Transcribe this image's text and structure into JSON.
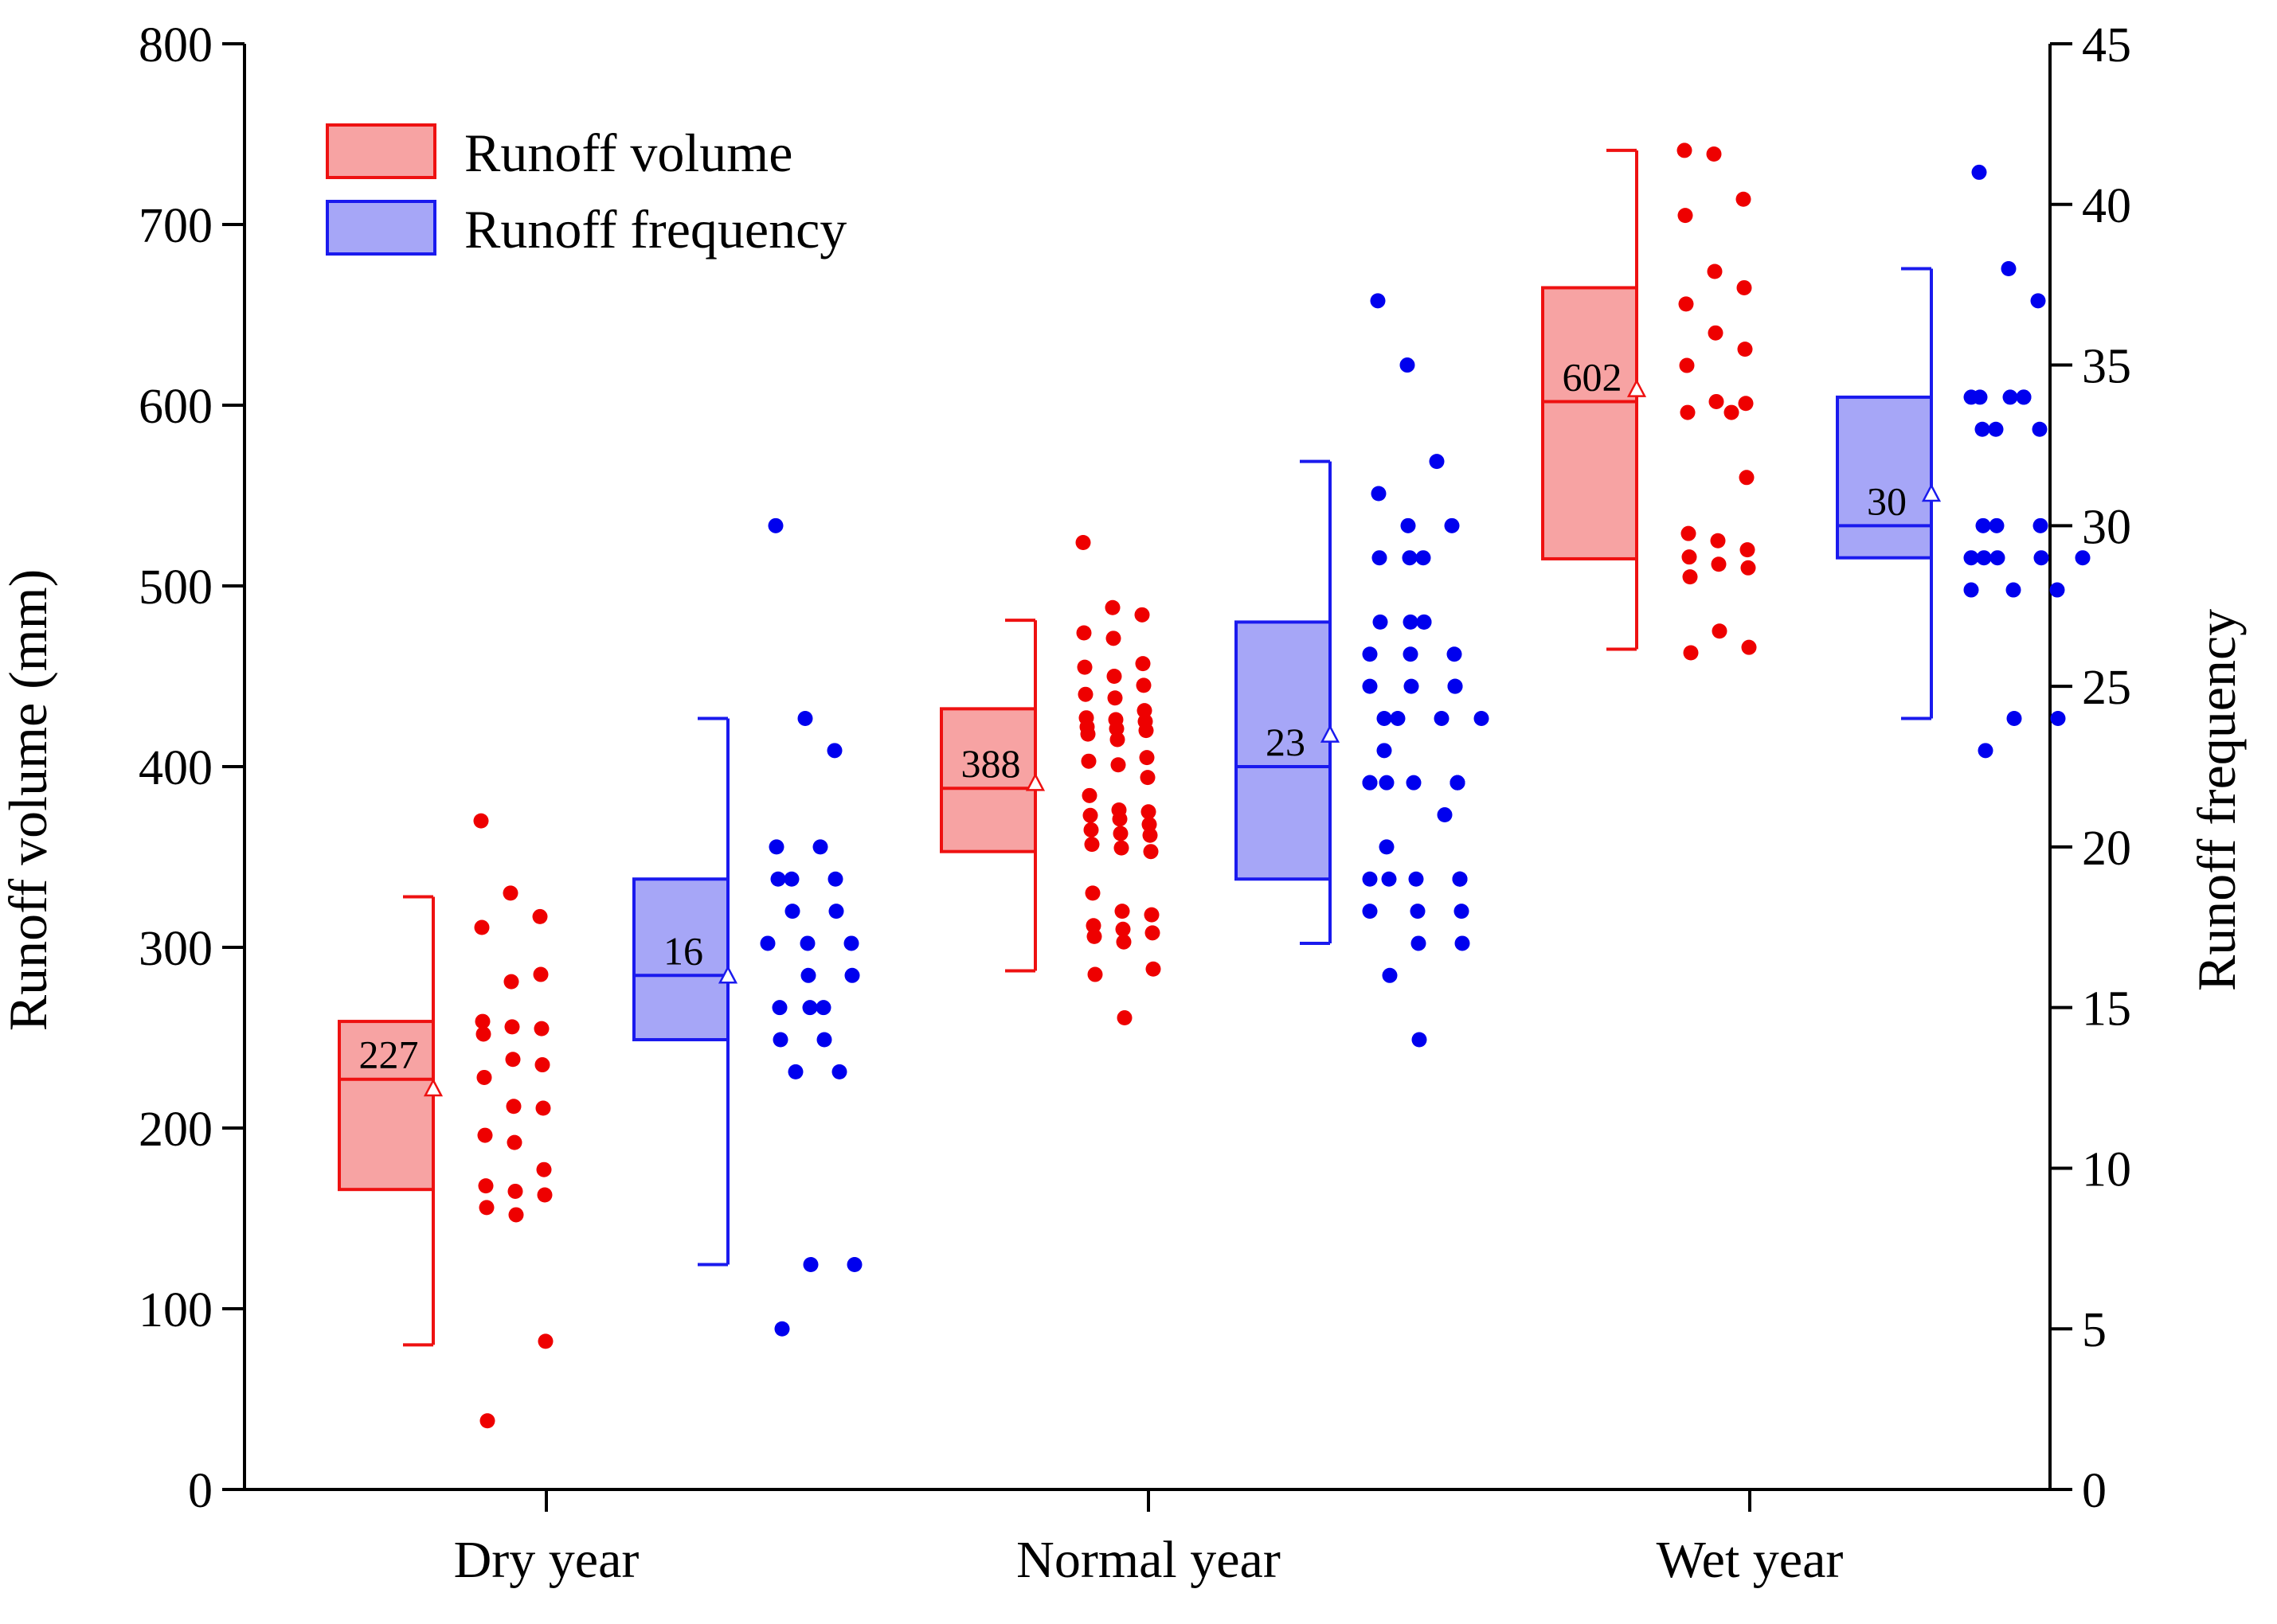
{
  "chart_data": {
    "type": "box-scatter",
    "categories": [
      "Dry year",
      "Normal year",
      "Wet year"
    ],
    "left_axis": {
      "label": "Runoff volume (mm)",
      "range": [
        0,
        800
      ],
      "ticks": [
        0,
        100,
        200,
        300,
        400,
        500,
        600,
        700,
        800
      ]
    },
    "right_axis": {
      "label": "Runoff frequency",
      "range": [
        0,
        45
      ],
      "ticks": [
        0,
        5,
        10,
        15,
        20,
        25,
        30,
        35,
        40,
        45
      ]
    },
    "legend": {
      "position": "top-left",
      "items": [
        "Runoff volume",
        "Runoff frequency"
      ]
    },
    "colors": {
      "volume_line": "#ee1111",
      "volume_fill": "#f7a3a3",
      "frequency_line": "#1a1aee",
      "frequency_fill": "#a6a6f7",
      "volume_point": "#ee0000",
      "frequency_point": "#0000ee"
    },
    "series": [
      {
        "name": "Runoff volume",
        "axis": "left",
        "boxes": [
          {
            "category": "Dry year",
            "whisker_low": 80,
            "q1": 166,
            "median": 227,
            "q3": 259,
            "whisker_high": 328,
            "mean": 222,
            "median_label": "227",
            "points": [
              370,
              330,
              317,
              311,
              281,
              285,
              259,
              256,
              255,
              252,
              238,
              235,
              228,
              212,
              211,
              196,
              192,
              177,
              168,
              165,
              163,
              156,
              152,
              82,
              38
            ]
          },
          {
            "category": "Normal year",
            "whisker_low": 287,
            "q1": 353,
            "median": 388,
            "q3": 432,
            "whisker_high": 481,
            "mean": 391,
            "median_label": "388",
            "points": [
              524,
              488,
              484,
              474,
              471,
              457,
              455,
              450,
              445,
              440,
              438,
              431,
              427,
              426,
              425,
              422,
              421,
              420,
              418,
              415,
              405,
              403,
              401,
              394,
              384,
              376,
              375,
              373,
              371,
              368,
              365,
              363,
              362,
              357,
              355,
              353,
              330,
              320,
              318,
              312,
              310,
              308,
              306,
              303,
              288,
              285,
              261
            ]
          },
          {
            "category": "Wet year",
            "whisker_low": 465,
            "q1": 515,
            "median": 602,
            "q3": 665,
            "whisker_high": 741,
            "mean": 609,
            "median_label": "602",
            "points": [
              741,
              739,
              714,
              705,
              674,
              665,
              656,
              640,
              631,
              622,
              602,
              601,
              596,
              596,
              560,
              529,
              525,
              520,
              516,
              512,
              510,
              505,
              475,
              466,
              463
            ]
          }
        ]
      },
      {
        "name": "Runoff frequency",
        "axis": "right",
        "boxes": [
          {
            "category": "Dry year",
            "whisker_low": 7,
            "q1": 14,
            "median": 16,
            "q3": 19,
            "whisker_high": 24,
            "mean": 16,
            "median_label": "16",
            "points": [
              30,
              24,
              23,
              20,
              20,
              19,
              19,
              19,
              18,
              18,
              17,
              17,
              17,
              16,
              16,
              15,
              15,
              15,
              14,
              14,
              13,
              13,
              7,
              7,
              5
            ]
          },
          {
            "category": "Normal year",
            "whisker_low": 17,
            "q1": 19,
            "median": 22.5,
            "q3": 27,
            "whisker_high": 32,
            "mean": 23.5,
            "median_label": "23",
            "points": [
              37,
              35,
              32,
              31,
              30,
              30,
              29,
              29,
              29,
              27,
              27,
              27,
              27,
              26,
              26,
              26,
              25,
              25,
              25,
              25,
              24,
              24,
              24,
              24,
              23,
              22,
              22,
              22,
              22,
              22,
              22,
              22,
              21,
              20,
              19,
              19,
              19,
              19,
              19,
              19,
              18,
              18,
              18,
              17,
              17,
              16,
              14
            ]
          },
          {
            "category": "Wet year",
            "whisker_low": 24,
            "q1": 29,
            "median": 30,
            "q3": 34,
            "whisker_high": 38,
            "mean": 31,
            "median_label": "30",
            "points": [
              41,
              38,
              37,
              34,
              34,
              34,
              34,
              34,
              33,
              33,
              33,
              30,
              30,
              30,
              29,
              29,
              29,
              29,
              29,
              28,
              28,
              28,
              24,
              24,
              23
            ]
          }
        ]
      }
    ]
  }
}
